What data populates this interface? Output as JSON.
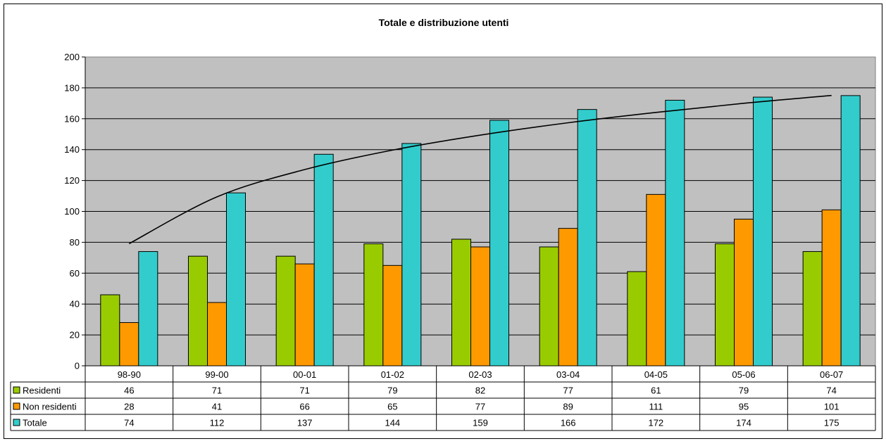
{
  "chart_data": {
    "type": "bar",
    "title": "Totale e distribuzione utenti",
    "categories": [
      "98-90",
      "99-00",
      "00-01",
      "01-02",
      "02-03",
      "03-04",
      "04-05",
      "05-06",
      "06-07"
    ],
    "series": [
      {
        "name": "Residenti",
        "color": "#99cc00",
        "values": [
          46,
          71,
          71,
          79,
          82,
          77,
          61,
          79,
          74
        ]
      },
      {
        "name": "Non residenti",
        "color": "#ff9900",
        "values": [
          28,
          41,
          66,
          65,
          77,
          89,
          111,
          95,
          101
        ]
      },
      {
        "name": "Totale",
        "color": "#33cccc",
        "values": [
          74,
          112,
          137,
          144,
          159,
          166,
          172,
          174,
          175
        ]
      }
    ],
    "trendline": {
      "type": "logarithmic",
      "series": "Totale",
      "values": [
        79.1,
        109.4,
        127.1,
        139.7,
        149.4,
        157.4,
        164.1,
        170.0,
        175.1
      ]
    },
    "ylim": [
      0,
      200
    ],
    "yticks": [
      0,
      20,
      40,
      60,
      80,
      100,
      120,
      140,
      160,
      180,
      200
    ],
    "grid": true,
    "plot_background": "#c0c0c0",
    "legend": "data-table"
  }
}
